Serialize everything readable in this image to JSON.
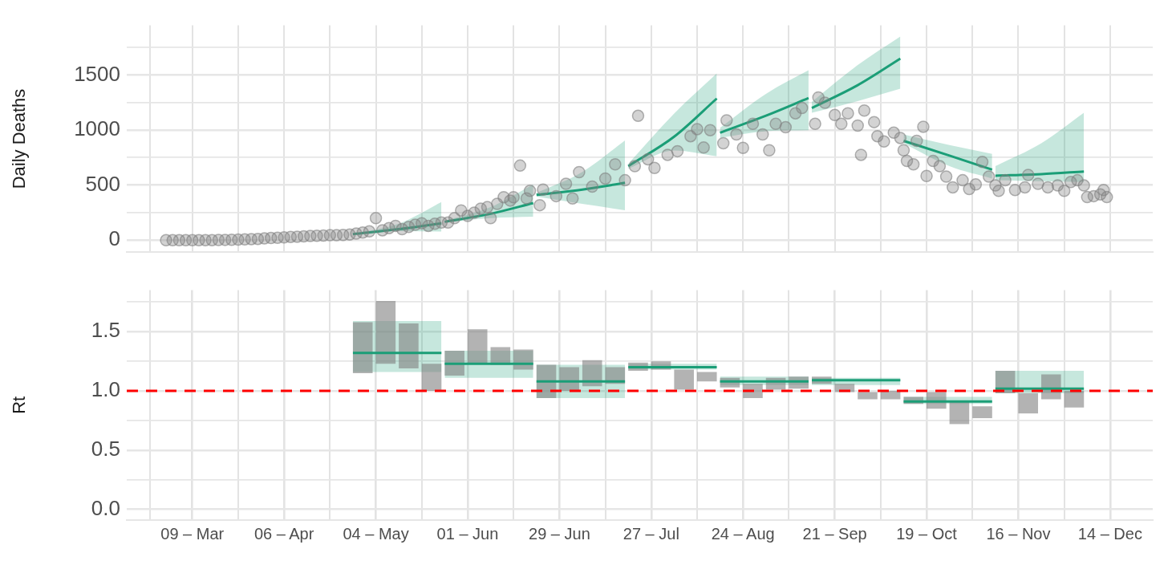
{
  "chart_data": [
    {
      "type": "scatter",
      "ylabel": "Daily Deaths",
      "tick_labels": "y",
      "grid": true,
      "xlim": [
        "--02-17",
        "--12-27"
      ],
      "xticks": [
        {
          "value": "--02-24",
          "label": null
        },
        {
          "value": "--03-09",
          "label": null
        },
        {
          "value": "--03-23",
          "label": null
        },
        {
          "value": "--04-06",
          "label": null
        },
        {
          "value": "--04-20",
          "label": null
        },
        {
          "value": "--05-04",
          "label": null
        },
        {
          "value": "--05-18",
          "label": null
        },
        {
          "value": "--06-01",
          "label": null
        },
        {
          "value": "--06-15",
          "label": null
        },
        {
          "value": "--06-29",
          "label": null
        },
        {
          "value": "--07-13",
          "label": null
        },
        {
          "value": "--07-27",
          "label": null
        },
        {
          "value": "--08-10",
          "label": null
        },
        {
          "value": "--08-24",
          "label": null
        },
        {
          "value": "--09-07",
          "label": null
        },
        {
          "value": "--09-21",
          "label": null
        },
        {
          "value": "--10-05",
          "label": null
        },
        {
          "value": "--10-19",
          "label": null
        },
        {
          "value": "--11-02",
          "label": null
        },
        {
          "value": "--11-16",
          "label": null
        },
        {
          "value": "--11-30",
          "label": null
        },
        {
          "value": "--12-14",
          "label": null
        }
      ],
      "ylim": [
        -110,
        1950
      ],
      "yticks": [
        0,
        {
          "value": 250,
          "label": null
        },
        500,
        {
          "value": 750,
          "label": null
        },
        1000,
        {
          "value": 1250,
          "label": null
        },
        1500,
        {
          "value": 1750,
          "label": null
        }
      ],
      "series": [
        {
          "color": "#808080",
          "x": [
            "--03-01",
            "--03-03",
            "--03-05",
            "--03-07",
            "--03-09",
            "--03-11",
            "--03-13",
            "--03-15",
            "--03-17",
            "--03-19",
            "--03-21",
            "--03-23",
            "--03-25",
            "--03-27",
            "--03-29",
            "--03-31",
            "--04-02",
            "--04-04",
            "--04-06",
            "--04-08",
            "--04-10",
            "--04-12",
            "--04-14",
            "--04-16",
            "--04-18",
            "--04-20",
            "--04-22",
            "--04-24",
            "--04-26",
            "--04-28",
            "--04-30",
            "--05-02",
            "--05-04",
            "--05-06",
            "--05-08",
            "--05-10",
            "--05-12",
            "--05-14",
            "--05-16",
            "--05-18",
            "--05-20",
            "--05-22",
            "--05-24",
            "--05-26",
            "--05-28",
            "--05-30",
            "--06-01",
            "--06-03",
            "--06-05",
            "--06-07",
            "--06-08",
            "--06-10",
            "--06-12",
            "--06-14",
            "--06-15",
            "--06-17",
            "--06-19",
            "--06-20",
            "--06-23",
            "--06-24",
            "--06-28",
            "--07-01",
            "--07-03",
            "--07-05",
            "--07-09",
            "--07-13",
            "--07-16",
            "--07-19",
            "--07-22",
            "--07-23",
            "--07-26",
            "--07-28",
            "--08-01",
            "--08-04",
            "--08-08",
            "--08-10",
            "--08-12",
            "--08-14",
            "--08-18",
            "--08-19",
            "--08-22",
            "--08-24",
            "--08-27",
            "--08-30",
            "--09-01",
            "--09-03",
            "--09-06",
            "--09-09",
            "--09-11",
            "--09-15",
            "--09-16",
            "--09-18",
            "--09-21",
            "--09-23",
            "--09-25",
            "--09-28",
            "--09-29",
            "--09-30",
            "--10-03",
            "--10-04",
            "--10-06",
            "--10-09",
            "--10-11",
            "--10-12",
            "--10-13",
            "--10-15",
            "--10-16",
            "--10-18",
            "--10-19",
            "--10-21",
            "--10-23",
            "--10-25",
            "--10-27",
            "--10-30",
            "--11-01",
            "--11-03",
            "--11-05",
            "--11-07",
            "--11-09",
            "--11-10",
            "--11-12",
            "--11-15",
            "--11-18",
            "--11-19",
            "--11-22",
            "--11-25",
            "--11-28",
            "--11-30",
            "--12-02",
            "--12-04",
            "--12-06",
            "--12-07",
            "--12-09",
            "--12-11",
            "--12-12",
            "--12-13"
          ],
          "values": [
            0,
            0,
            0,
            0,
            0,
            0,
            1,
            1,
            2,
            3,
            4,
            5,
            7,
            10,
            12,
            16,
            20,
            22,
            25,
            30,
            32,
            35,
            38,
            40,
            42,
            45,
            45,
            48,
            52,
            60,
            70,
            80,
            200,
            90,
            110,
            130,
            100,
            120,
            140,
            154,
            130,
            150,
            160,
            160,
            200,
            270,
            220,
            250,
            286,
            300,
            200,
            330,
            390,
            360,
            390,
            677,
            380,
            448,
            318,
            460,
            400,
            512,
            379,
            618,
            486,
            560,
            689,
            544,
            672,
            1129,
            735,
            656,
            775,
            808,
            944,
            1008,
            841,
            999,
            880,
            1088,
            960,
            838,
            1056,
            960,
            816,
            1056,
            1025,
            1152,
            1200,
            1056,
            1296,
            1248,
            1136,
            1056,
            1152,
            1040,
            775,
            1177,
            1072,
            944,
            896,
            976,
            928,
            816,
            720,
            689,
            902,
            1030,
            583,
            720,
            672,
            577,
            480,
            544,
            465,
            506,
            710,
            577,
            497,
            448,
            544,
            455,
            480,
            592,
            512,
            480,
            497,
            448,
            528,
            544,
            497,
            391,
            400,
            416,
            455,
            391
          ]
        },
        {
          "type": "line",
          "color": "#1b9e77",
          "x": [
            "--04-27",
            "--05-11",
            "--05-24"
          ],
          "values": [
            55,
            100,
            154
          ],
          "lower": [
            50,
            83,
            78
          ],
          "upper": [
            60,
            150,
            346
          ]
        },
        {
          "type": "line",
          "color": "#1b9e77",
          "x": [
            "--05-25",
            "--06-08",
            "--06-21"
          ],
          "values": [
            167,
            240,
            337
          ],
          "lower": [
            160,
            200,
            213
          ],
          "upper": [
            175,
            300,
            507
          ]
        },
        {
          "type": "line",
          "color": "#1b9e77",
          "x": [
            "--06-22",
            "--07-06",
            "--07-19"
          ],
          "values": [
            412,
            460,
            521
          ],
          "lower": [
            395,
            330,
            272
          ],
          "upper": [
            430,
            620,
            905
          ]
        },
        {
          "type": "line",
          "color": "#1b9e77",
          "x": [
            "--07-20",
            "--08-03",
            "--08-16"
          ],
          "values": [
            672,
            940,
            1286
          ],
          "lower": [
            650,
            815,
            762
          ],
          "upper": [
            695,
            1150,
            1513
          ]
        },
        {
          "type": "line",
          "color": "#1b9e77",
          "x": [
            "--08-17",
            "--08-31",
            "--09-13"
          ],
          "values": [
            976,
            1130,
            1290
          ],
          "lower": [
            930,
            990,
            998
          ],
          "upper": [
            1020,
            1328,
            1542
          ]
        },
        {
          "type": "line",
          "color": "#1b9e77",
          "x": [
            "--09-14",
            "--09-28",
            "--10-11"
          ],
          "values": [
            1200,
            1407,
            1648
          ],
          "lower": [
            1157,
            1263,
            1375
          ],
          "upper": [
            1256,
            1590,
            1849
          ]
        },
        {
          "type": "line",
          "color": "#1b9e77",
          "x": [
            "--10-12",
            "--10-26",
            "--11-08"
          ],
          "values": [
            902,
            768,
            640
          ],
          "lower": [
            880,
            672,
            560
          ],
          "upper": [
            960,
            864,
            784
          ]
        },
        {
          "type": "line",
          "color": "#1b9e77",
          "x": [
            "--11-09",
            "--11-23",
            "--12-06"
          ],
          "values": [
            585,
            600,
            624
          ],
          "lower": [
            544,
            535,
            528
          ],
          "upper": [
            672,
            880,
            1157
          ]
        }
      ]
    },
    {
      "type": "bar",
      "ylabel": "Rt",
      "grid": true,
      "xlim": [
        "--02-17",
        "--12-27"
      ],
      "xticks": [
        {
          "value": "--02-24",
          "label": null
        },
        {
          "value": "--03-09",
          "label": "09 – Mar"
        },
        {
          "value": "--03-23",
          "label": null
        },
        {
          "value": "--04-06",
          "label": "06 – Apr"
        },
        {
          "value": "--04-20",
          "label": null
        },
        {
          "value": "--05-04",
          "label": "04 – May"
        },
        {
          "value": "--05-18",
          "label": null
        },
        {
          "value": "--06-01",
          "label": "01 – Jun"
        },
        {
          "value": "--06-15",
          "label": null
        },
        {
          "value": "--06-29",
          "label": "29 – Jun"
        },
        {
          "value": "--07-13",
          "label": null
        },
        {
          "value": "--07-27",
          "label": "27 – Jul"
        },
        {
          "value": "--08-10",
          "label": null
        },
        {
          "value": "--08-24",
          "label": "24 – Aug"
        },
        {
          "value": "--09-07",
          "label": null
        },
        {
          "value": "--09-21",
          "label": "21 – Sep"
        },
        {
          "value": "--10-05",
          "label": null
        },
        {
          "value": "--10-19",
          "label": "19 – Oct"
        },
        {
          "value": "--11-02",
          "label": null
        },
        {
          "value": "--11-16",
          "label": "16 – Nov"
        },
        {
          "value": "--11-30",
          "label": null
        },
        {
          "value": "--12-14",
          "label": "14 – Dec"
        }
      ],
      "ylim": [
        -0.09,
        1.85
      ],
      "yticks": [
        {
          "value": 0,
          "label": "0.0"
        },
        {
          "value": 0.25,
          "label": null
        },
        {
          "value": 0.5,
          "label": "0.5"
        },
        {
          "value": 0.75,
          "label": null
        },
        {
          "value": 1,
          "label": "1.0"
        },
        {
          "value": 1.25,
          "label": null
        },
        {
          "value": 1.5,
          "label": "1.5"
        },
        {
          "value": 1.75,
          "label": null
        }
      ],
      "ref_lines": [
        {
          "axis": "y",
          "value": 1,
          "color": "#ff0000",
          "line_style": "dashed"
        }
      ],
      "series": [
        {
          "color": "#808080",
          "x": [
            "--04-30",
            "--05-07",
            "--05-14",
            "--05-21",
            "--05-28",
            "--06-04",
            "--06-11",
            "--06-18",
            "--06-25",
            "--07-02",
            "--07-09",
            "--07-16",
            "--07-23",
            "--07-30",
            "--08-06",
            "--08-13",
            "--08-20",
            "--08-27",
            "--09-03",
            "--09-10",
            "--09-17",
            "--09-24",
            "--10-01",
            "--10-08",
            "--10-15",
            "--10-22",
            "--10-29",
            "--11-05",
            "--11-12",
            "--11-19",
            "--11-26",
            "--12-03"
          ],
          "base": [
            1.15,
            1.23,
            1.19,
            1.0,
            1.13,
            1.23,
            1.22,
            1.18,
            0.94,
            1.0,
            1.04,
            1.06,
            1.17,
            1.18,
            1.01,
            1.08,
            1.03,
            0.94,
            1.01,
            1.02,
            1.06,
            0.99,
            0.93,
            0.93,
            0.89,
            0.85,
            0.72,
            0.77,
            0.98,
            0.81,
            0.93,
            0.86
          ],
          "values": [
            0.43,
            0.53,
            0.38,
            0.23,
            0.21,
            0.29,
            0.15,
            0.17,
            0.28,
            0.2,
            0.22,
            0.14,
            0.07,
            0.07,
            0.17,
            0.08,
            0.08,
            0.12,
            0.1,
            0.1,
            0.06,
            0.07,
            0.06,
            0.07,
            0.06,
            0.14,
            0.2,
            0.1,
            0.19,
            0.17,
            0.21,
            0.14
          ]
        },
        {
          "type": "line",
          "color": "#1b9e77",
          "x": [
            "--04-27",
            "--05-24"
          ],
          "values": [
            1.32,
            1.32
          ],
          "lower": [
            1.16,
            1.16
          ],
          "upper": [
            1.59,
            1.59
          ]
        },
        {
          "type": "line",
          "color": "#1b9e77",
          "x": [
            "--05-25",
            "--06-21"
          ],
          "values": [
            1.23,
            1.23
          ],
          "lower": [
            1.11,
            1.11
          ],
          "upper": [
            1.34,
            1.34
          ]
        },
        {
          "type": "line",
          "color": "#1b9e77",
          "x": [
            "--06-22",
            "--07-19"
          ],
          "values": [
            1.08,
            1.08
          ],
          "lower": [
            0.94,
            0.94
          ],
          "upper": [
            1.22,
            1.22
          ]
        },
        {
          "type": "line",
          "color": "#1b9e77",
          "x": [
            "--07-20",
            "--08-16"
          ],
          "values": [
            1.2,
            1.2
          ],
          "lower": [
            1.18,
            1.18
          ],
          "upper": [
            1.23,
            1.23
          ]
        },
        {
          "type": "line",
          "color": "#1b9e77",
          "x": [
            "--08-17",
            "--09-13"
          ],
          "values": [
            1.08,
            1.08
          ],
          "lower": [
            1.05,
            1.05
          ],
          "upper": [
            1.12,
            1.12
          ]
        },
        {
          "type": "line",
          "color": "#1b9e77",
          "x": [
            "--09-14",
            "--10-11"
          ],
          "values": [
            1.09,
            1.09
          ],
          "lower": [
            1.05,
            1.05
          ],
          "upper": [
            1.11,
            1.11
          ]
        },
        {
          "type": "line",
          "color": "#1b9e77",
          "x": [
            "--10-12",
            "--11-08"
          ],
          "values": [
            0.91,
            0.91
          ],
          "lower": [
            0.89,
            0.89
          ],
          "upper": [
            0.95,
            0.95
          ]
        },
        {
          "type": "line",
          "color": "#1b9e77",
          "x": [
            "--11-09",
            "--12-06"
          ],
          "values": [
            1.02,
            1.02
          ],
          "lower": [
            0.98,
            0.98
          ],
          "upper": [
            1.17,
            1.17
          ]
        }
      ]
    }
  ]
}
